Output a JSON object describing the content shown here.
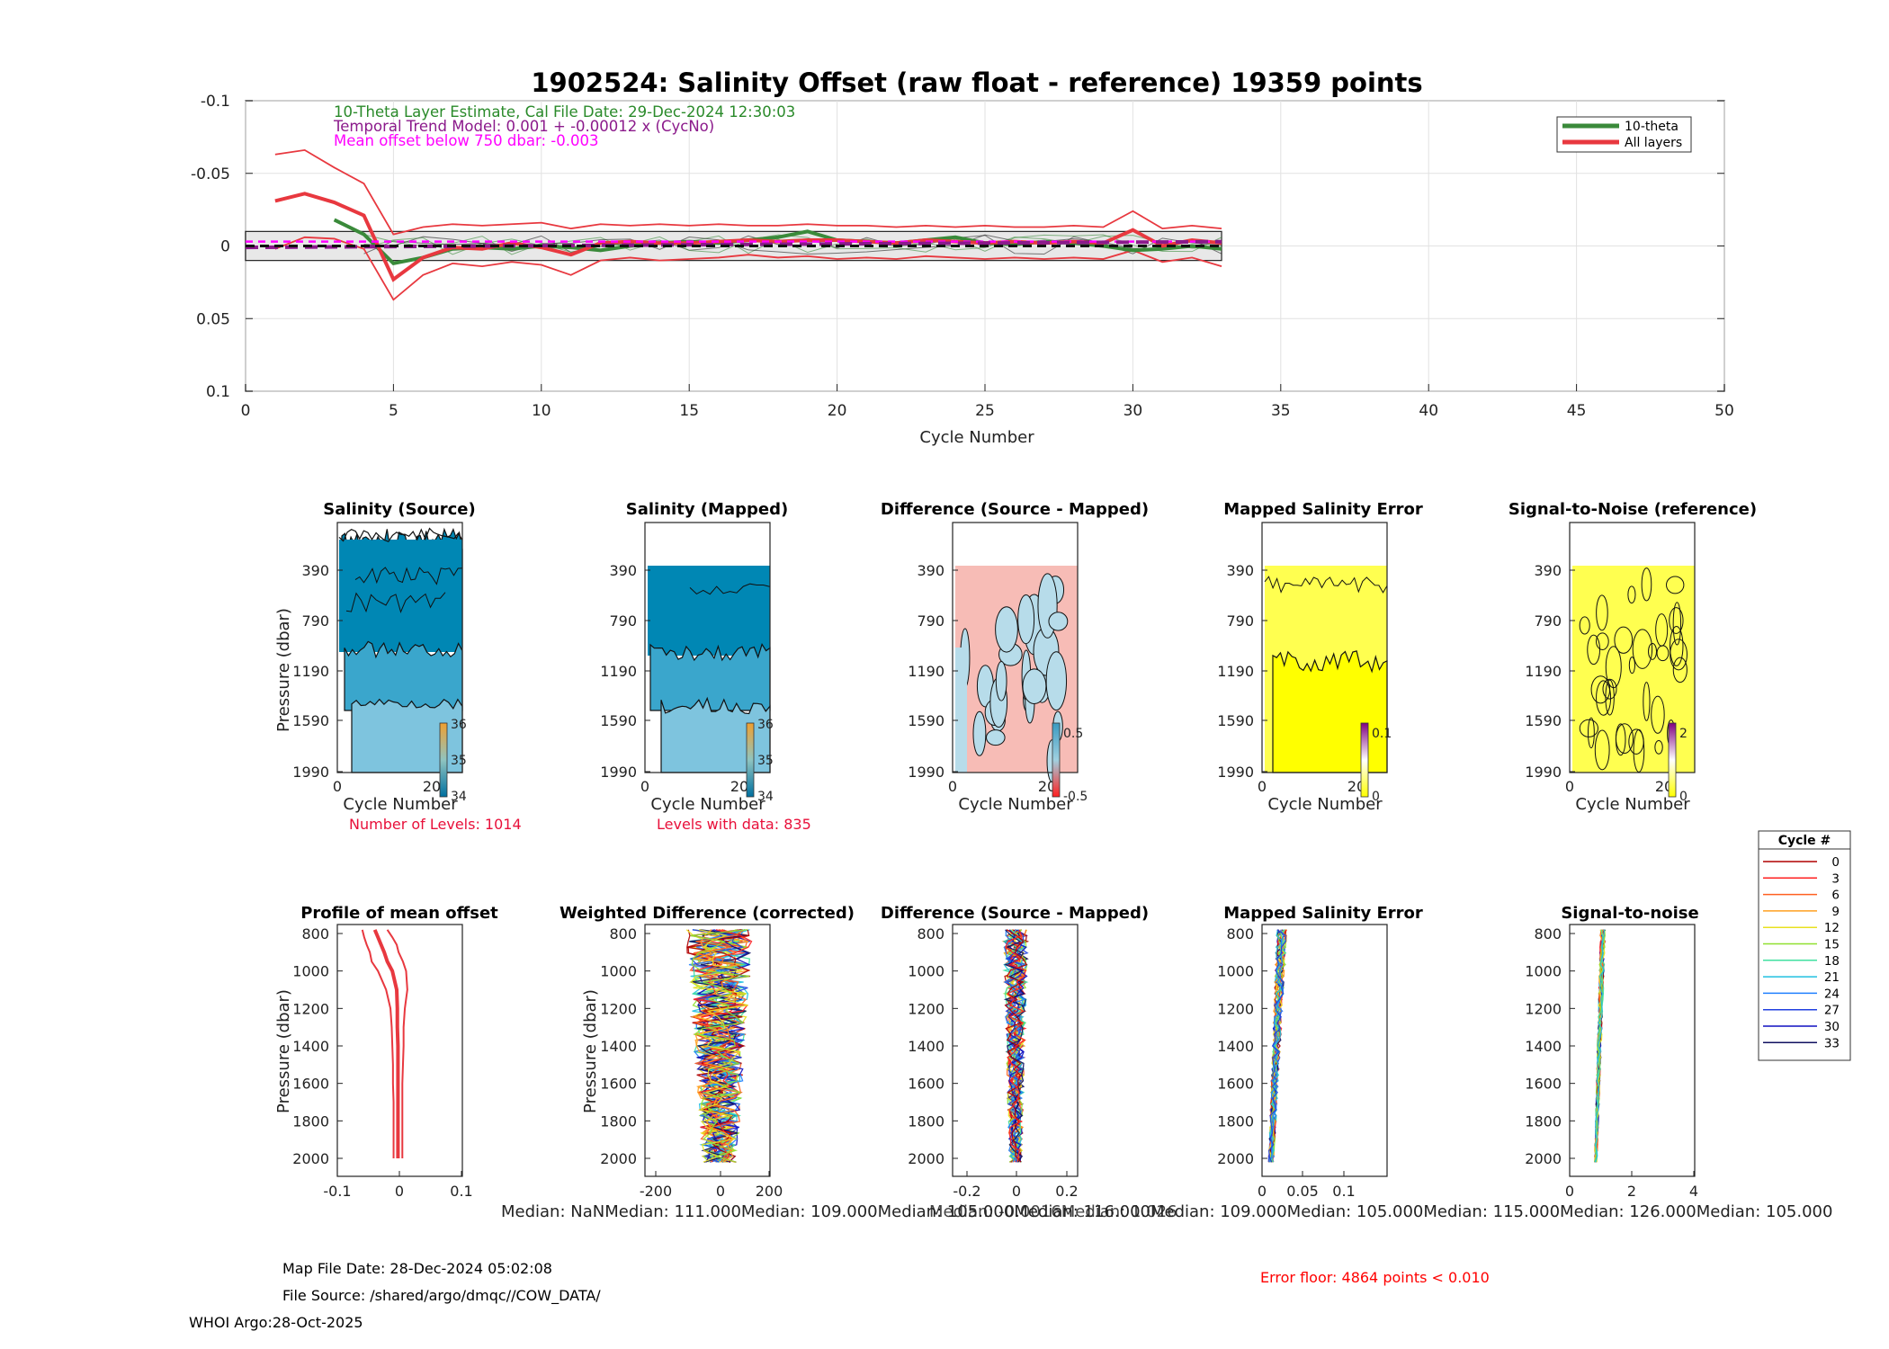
{
  "colors": {
    "theta": "#3a8a3a",
    "all_layers": "#e8383f",
    "trend": "#8b1a8b",
    "mean_offset": "#ff00ff",
    "band_fill": "#e8e8e8",
    "annotation_red": "#ff0000",
    "sal_dark": "#0087b4",
    "sal_mid": "#3aa6cc",
    "sal_light": "#7ec4de",
    "diff_pos": "#f7bcb6",
    "diff_neg": "#b7dcea",
    "err_yellow": "#ffff00",
    "err_pale": "#ffff50"
  },
  "top": {
    "title": "1902524: Salinity Offset (raw float - reference)   19359 points",
    "info_line1": "10-Theta Layer Estimate, Cal File Date: 29-Dec-2024 12:30:03",
    "info_line2": "Temporal Trend Model: 0.001 + -0.00012 x (CycNo)",
    "info_line3": "Mean offset below 750 dbar: -0.003",
    "legend_theta": "10-theta",
    "legend_all": "All layers",
    "xlabel": "Cycle Number"
  },
  "mid": {
    "titles": [
      "Salinity (Source)",
      "Salinity (Mapped)",
      "Difference (Source - Mapped)",
      "Mapped Salinity Error",
      "Signal-to-Noise (reference)"
    ],
    "ylabel": "Pressure (dbar)",
    "xlabel": "Cycle Number",
    "y_ticks": [
      "390",
      "790",
      "1190",
      "1590",
      "1990"
    ],
    "x_ticks": [
      "0",
      "20"
    ],
    "colorbar_sal": [
      "36",
      "35",
      "34"
    ],
    "colorbar_diff": [
      "0.5",
      "-0.5"
    ],
    "colorbar_err": [
      "0.1",
      "0"
    ],
    "colorbar_snr": [
      "2",
      "0"
    ],
    "note_levels": "Number of Levels: 1014",
    "note_data": "Levels with data: 835"
  },
  "bottom": {
    "titles": [
      "Profile of mean offset",
      "Weighted Difference (corrected)",
      "Difference (Source - Mapped)",
      "Mapped Salinity Error",
      "Signal-to-noise"
    ],
    "ylabel": "Pressure (dbar)",
    "y_ticks": [
      "800",
      "1000",
      "1200",
      "1400",
      "1600",
      "1800",
      "2000"
    ],
    "x_ticks_1": [
      "-0.1",
      "0",
      "0.1"
    ],
    "x_ticks_2": [
      "-200",
      "0",
      "200"
    ],
    "x_ticks_3": [
      "-0.2",
      "0",
      "0.2"
    ],
    "x_ticks_4": [
      "0",
      "0.05",
      "0.1"
    ],
    "x_ticks_5": [
      "0",
      "2",
      "4"
    ],
    "median_text": "Median:      NaNMedian: 111.000Median: 109.000Median: 105.000Median: 116.000Median: 109.000Median: 105.000Median: 115.000Median: 126.000Median: 105.000",
    "median_overlay": "Median: -0.0016Median: 1.026"
  },
  "cycle_legend": {
    "title": "Cycle #",
    "entries": [
      "0",
      "3",
      "6",
      "9",
      "12",
      "15",
      "18",
      "21",
      "24",
      "27",
      "30",
      "33"
    ],
    "colors": [
      "#b00000",
      "#ff2020",
      "#ff6020",
      "#ffa020",
      "#e8e020",
      "#90e030",
      "#40e0a0",
      "#20c0e0",
      "#2080ff",
      "#2040e0",
      "#1010c0",
      "#101060"
    ]
  },
  "footer": {
    "map_date": "Map File Date: 28-Dec-2024 05:02:08",
    "file_source": "File Source: /shared/argo/dmqc//COW_DATA/",
    "whoi": "WHOI Argo:28-Oct-2025",
    "error_floor": "Error floor:  4864 points < 0.010"
  },
  "chart_data": [
    {
      "type": "line",
      "title": "1902524: Salinity Offset (raw float - reference)   19359 points",
      "xlabel": "Cycle Number",
      "ylabel": "",
      "xlim": [
        0,
        50
      ],
      "ylim": [
        0.1,
        -0.1
      ],
      "x_ticks": [
        0,
        5,
        10,
        15,
        20,
        25,
        30,
        35,
        40,
        45,
        50
      ],
      "y_ticks": [
        -0.1,
        -0.05,
        0,
        0.05,
        0.1
      ],
      "series": [
        {
          "name": "10-theta",
          "x": [
            3,
            4,
            5,
            6,
            7,
            8,
            9,
            10,
            11,
            12,
            13,
            14,
            15,
            16,
            17,
            18,
            19,
            20,
            21,
            22,
            23,
            24,
            25,
            26,
            27,
            28,
            29,
            30,
            31,
            32,
            33
          ],
          "values": [
            -0.018,
            -0.008,
            0.012,
            0.008,
            0.002,
            0.001,
            0.002,
            0.0,
            0.001,
            0.003,
            0.0,
            -0.002,
            -0.003,
            -0.002,
            -0.004,
            -0.006,
            -0.01,
            -0.004,
            -0.003,
            -0.002,
            -0.004,
            -0.006,
            -0.002,
            -0.001,
            -0.003,
            -0.002,
            0.0,
            0.003,
            0.002,
            0.0,
            0.002
          ]
        },
        {
          "name": "All layers",
          "x": [
            1,
            2,
            3,
            4,
            5,
            6,
            7,
            8,
            9,
            10,
            11,
            12,
            13,
            14,
            15,
            16,
            17,
            18,
            19,
            20,
            21,
            22,
            23,
            24,
            25,
            26,
            27,
            28,
            29,
            30,
            31,
            32,
            33
          ],
          "values": [
            -0.031,
            -0.036,
            -0.03,
            -0.021,
            0.023,
            0.008,
            0.001,
            0.002,
            -0.002,
            0.001,
            0.006,
            -0.002,
            -0.003,
            -0.002,
            -0.002,
            -0.003,
            -0.004,
            -0.003,
            -0.004,
            -0.004,
            -0.003,
            -0.002,
            -0.004,
            -0.003,
            -0.002,
            -0.003,
            -0.002,
            -0.003,
            -0.002,
            -0.011,
            0.0,
            -0.004,
            -0.002
          ]
        },
        {
          "name": "All layers upper bound",
          "x": [
            1,
            2,
            3,
            4,
            5,
            6,
            7,
            8,
            9,
            10,
            11,
            12,
            13,
            14,
            15,
            16,
            17,
            18,
            19,
            20,
            21,
            22,
            23,
            24,
            25,
            26,
            27,
            28,
            29,
            30,
            31,
            32,
            33
          ],
          "values": [
            -0.063,
            -0.066,
            -0.054,
            -0.043,
            -0.008,
            -0.013,
            -0.015,
            -0.014,
            -0.015,
            -0.016,
            -0.012,
            -0.015,
            -0.014,
            -0.015,
            -0.014,
            -0.015,
            -0.014,
            -0.014,
            -0.015,
            -0.014,
            -0.014,
            -0.013,
            -0.014,
            -0.013,
            -0.014,
            -0.013,
            -0.013,
            -0.014,
            -0.013,
            -0.024,
            -0.012,
            -0.014,
            -0.012
          ]
        },
        {
          "name": "All layers lower bound",
          "x": [
            1,
            2,
            3,
            4,
            5,
            6,
            7,
            8,
            9,
            10,
            11,
            12,
            13,
            14,
            15,
            16,
            17,
            18,
            19,
            20,
            21,
            22,
            23,
            24,
            25,
            26,
            27,
            28,
            29,
            30,
            31,
            32,
            33
          ],
          "values": [
            0.002,
            -0.006,
            -0.005,
            0.002,
            0.037,
            0.02,
            0.012,
            0.014,
            0.011,
            0.013,
            0.02,
            0.01,
            0.008,
            0.01,
            0.009,
            0.008,
            0.006,
            0.008,
            0.007,
            0.009,
            0.008,
            0.009,
            0.007,
            0.008,
            0.009,
            0.008,
            0.009,
            0.008,
            0.009,
            0.003,
            0.011,
            0.008,
            0.014
          ]
        },
        {
          "name": "Temporal trend",
          "x": [
            0,
            33
          ],
          "values": [
            0.001,
            -0.00296
          ]
        },
        {
          "name": "Mean offset below 750 dbar",
          "x": [
            0,
            33
          ],
          "values": [
            -0.003,
            -0.003
          ]
        }
      ],
      "band": {
        "x": [
          0,
          33
        ],
        "y": [
          -0.01,
          0.01
        ]
      },
      "legend": "top-right"
    },
    {
      "type": "line",
      "title": "Profile of mean offset",
      "xlim": [
        -0.1,
        0.1
      ],
      "ylim": [
        2100,
        770
      ],
      "ylabel": "Pressure (dbar)",
      "pressure": [
        780,
        820,
        860,
        900,
        950,
        1000,
        1100,
        1200,
        1300,
        1400,
        1500,
        1600,
        1700,
        1800,
        1900,
        2000
      ],
      "mean": [
        -0.04,
        -0.035,
        -0.03,
        -0.025,
        -0.02,
        -0.012,
        -0.005,
        -0.004,
        -0.004,
        -0.003,
        -0.003,
        -0.003,
        -0.003,
        -0.003,
        -0.003,
        -0.003
      ],
      "upper": [
        -0.02,
        -0.012,
        -0.005,
        -0.002,
        0.005,
        0.01,
        0.012,
        0.008,
        0.006,
        0.006,
        0.005,
        0.004,
        0.004,
        0.004,
        0.004,
        0.004
      ],
      "lower": [
        -0.06,
        -0.057,
        -0.053,
        -0.048,
        -0.045,
        -0.035,
        -0.022,
        -0.015,
        -0.013,
        -0.012,
        -0.011,
        -0.011,
        -0.01,
        -0.01,
        -0.01,
        -0.01
      ]
    }
  ]
}
